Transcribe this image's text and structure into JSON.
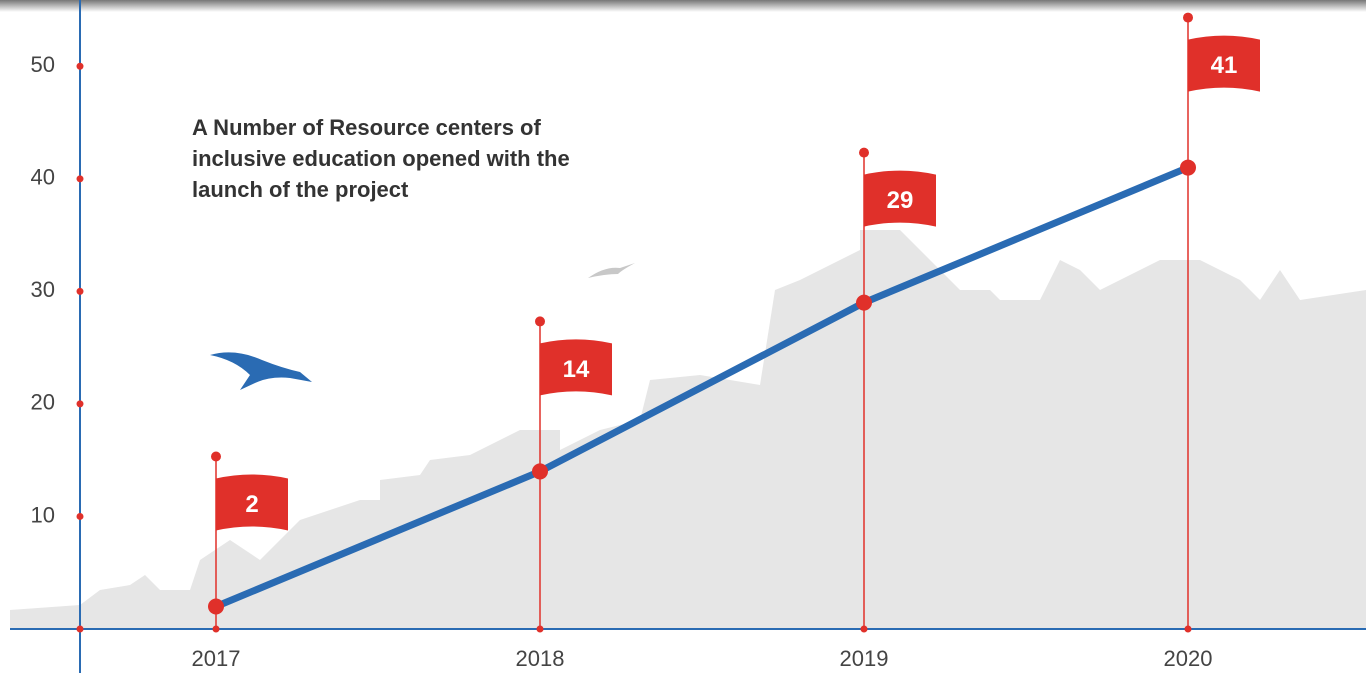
{
  "chart_data": {
    "type": "line",
    "title": "A Number of Resource centers of inclusive education opened with the launch of the project",
    "categories": [
      "2017",
      "2018",
      "2019",
      "2020"
    ],
    "values": [
      2,
      14,
      29,
      41
    ],
    "color": "#2a6bb3",
    "flag_color": "#e0302a",
    "ylim": [
      0,
      55
    ],
    "yticks": [
      10,
      20,
      30,
      40,
      50
    ]
  }
}
